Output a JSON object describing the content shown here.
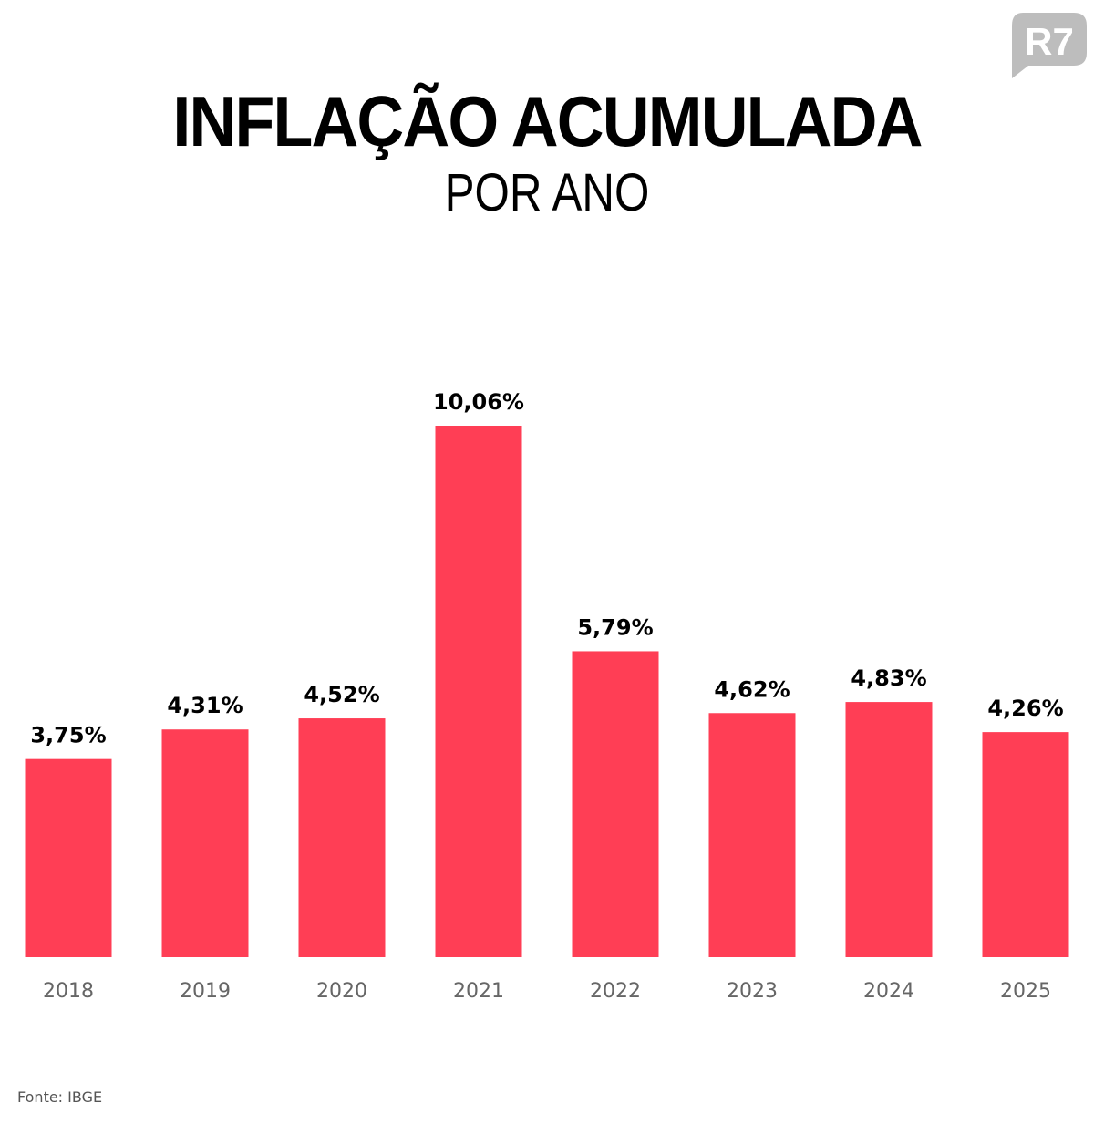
{
  "logo_text": "R7",
  "colors": {
    "bar": "#FF3E55",
    "logo": "#BDBDBD"
  },
  "chart_data": {
    "type": "bar",
    "title": "INFLAÇÃO ACUMULADA",
    "subtitle": "POR ANO",
    "categories": [
      "2018",
      "2019",
      "2020",
      "2021",
      "2022",
      "2023",
      "2024",
      "2025"
    ],
    "values": [
      3.75,
      4.31,
      4.52,
      10.06,
      5.79,
      4.62,
      4.83,
      4.26
    ],
    "labels": [
      "3,75%",
      "4,31%",
      "4,52%",
      "10,06%",
      "5,79%",
      "4,62%",
      "4,83%",
      "4,26%"
    ],
    "ylim": [
      0,
      10.06
    ],
    "grid": false,
    "source": "Fonte: IBGE"
  }
}
